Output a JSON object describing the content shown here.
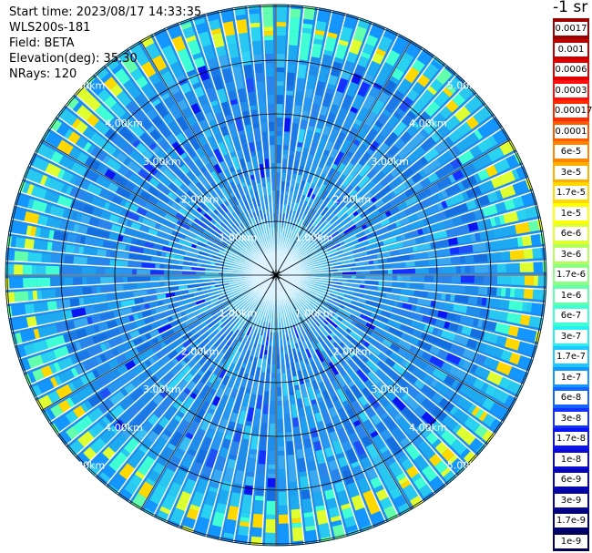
{
  "info": {
    "start_time": "Start time: 2023/08/17 14:33:35",
    "instrument": "WLS200s-181",
    "field": "Field: BETA",
    "elevation": "Elevation(deg): 35.30",
    "nrays": "NRays: 120"
  },
  "colorbar": {
    "title": "-1 sr",
    "labels": [
      "0.0017",
      "0.001",
      "0.0006",
      "0.0003",
      "0.00017",
      "0.0001",
      "6e-5",
      "3e-5",
      "1.7e-5",
      "1e-5",
      "6e-6",
      "3e-6",
      "1.7e-6",
      "1e-6",
      "6e-7",
      "3e-7",
      "1.7e-7",
      "1e-7",
      "6e-8",
      "3e-8",
      "1.7e-8",
      "1e-8",
      "6e-9",
      "3e-9",
      "1.7e-9",
      "1e-9"
    ],
    "colors": [
      "#9b0000",
      "#c00000",
      "#e00000",
      "#ff1010",
      "#ff2a00",
      "#ff5a00",
      "#ff8400",
      "#ffae00",
      "#ffd800",
      "#ffff00",
      "#e0ff30",
      "#b4ff5c",
      "#8cff84",
      "#64ffac",
      "#40ffd4",
      "#28f0f0",
      "#1cc8ff",
      "#1496ff",
      "#1464ff",
      "#1432ff",
      "#0a14f0",
      "#0a0ad2",
      "#0505b4",
      "#050596",
      "#000078",
      "#00005a"
    ]
  },
  "range_rings": [
    {
      "label": "1.00km"
    },
    {
      "label": "2.00km"
    },
    {
      "label": "3.00km"
    },
    {
      "label": "4.00km"
    },
    {
      "label": "5.00km"
    }
  ]
}
